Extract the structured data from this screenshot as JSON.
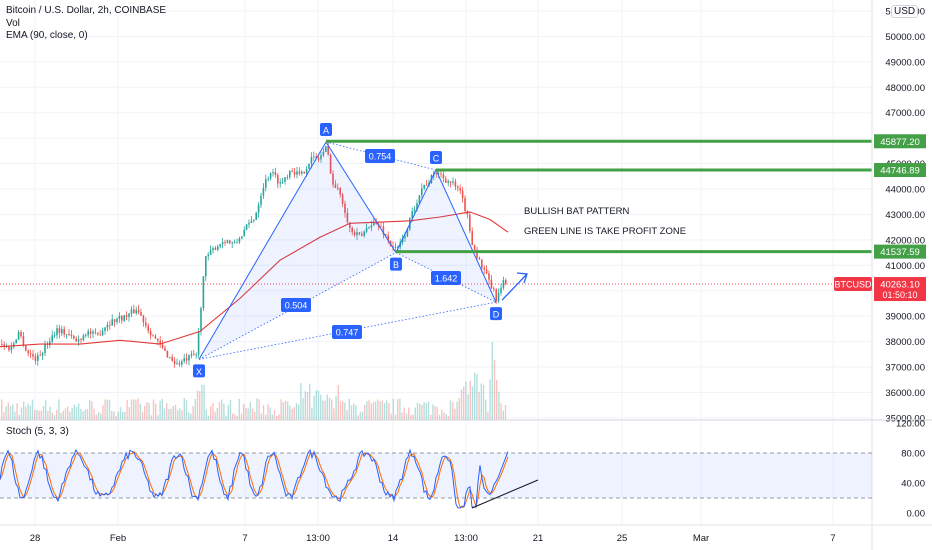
{
  "legend": {
    "title": "Bitcoin / U.S. Dollar, 2h, COINBASE",
    "volume": "Vol",
    "ema": "EMA (90, close, 0)"
  },
  "stoch_legend": "Stoch (5, 3, 3)",
  "unit_badge": "USD",
  "colors": {
    "up": "#26a69a",
    "down": "#ef5350",
    "ema": "#e53935",
    "pattern": "#2962ff",
    "profit_line": "#43a047",
    "stoch_k": "#2962ff",
    "stoch_d": "#ff6d00",
    "price_line": "#f23645"
  },
  "chart_data": [
    {
      "type": "candlestick",
      "symbol": "BTCUSD",
      "interval": "2h",
      "x_axis": {
        "tick_labels": [
          "28",
          "Feb",
          "7",
          "13:00",
          "14",
          "13:00",
          "21",
          "25",
          "Mar",
          "7"
        ]
      },
      "y_axis": {
        "ylim": [
          35000,
          51000
        ],
        "tick_labels": [
          "51000.00",
          "50000.00",
          "49000.00",
          "48000.00",
          "47000.00",
          "46000.00",
          "45000.00",
          "44000.00",
          "43000.00",
          "42000.00",
          "41000.00",
          "40000.00",
          "39000.00",
          "38000.00",
          "37000.00",
          "36000.00",
          "35000.00"
        ]
      },
      "price_path": [
        [
          0,
          37900
        ],
        [
          10,
          37700
        ],
        [
          18,
          38400
        ],
        [
          26,
          37600
        ],
        [
          36,
          37300
        ],
        [
          46,
          37900
        ],
        [
          56,
          38500
        ],
        [
          66,
          38300
        ],
        [
          76,
          38000
        ],
        [
          86,
          38400
        ],
        [
          96,
          38200
        ],
        [
          106,
          38700
        ],
        [
          116,
          38900
        ],
        [
          126,
          39000
        ],
        [
          136,
          39300
        ],
        [
          146,
          38600
        ],
        [
          156,
          38000
        ],
        [
          166,
          37500
        ],
        [
          176,
          37100
        ],
        [
          186,
          37300
        ],
        [
          196,
          37500
        ],
        [
          204,
          41200
        ],
        [
          214,
          41700
        ],
        [
          224,
          42000
        ],
        [
          234,
          41800
        ],
        [
          244,
          42400
        ],
        [
          254,
          42900
        ],
        [
          262,
          44100
        ],
        [
          270,
          44700
        ],
        [
          280,
          44200
        ],
        [
          290,
          44800
        ],
        [
          300,
          44500
        ],
        [
          310,
          45200
        ],
        [
          318,
          45200
        ],
        [
          326,
          45650
        ],
        [
          332,
          44200
        ],
        [
          340,
          43800
        ],
        [
          350,
          42300
        ],
        [
          360,
          42100
        ],
        [
          370,
          42700
        ],
        [
          380,
          42500
        ],
        [
          390,
          41800
        ],
        [
          396,
          41580
        ],
        [
          404,
          42200
        ],
        [
          412,
          43100
        ],
        [
          420,
          44000
        ],
        [
          428,
          44300
        ],
        [
          436,
          44700
        ],
        [
          444,
          44400
        ],
        [
          452,
          44200
        ],
        [
          460,
          43800
        ],
        [
          466,
          43000
        ],
        [
          472,
          41800
        ],
        [
          480,
          41000
        ],
        [
          488,
          40400
        ],
        [
          496,
          39650
        ],
        [
          502,
          40300
        ],
        [
          508,
          40250
        ]
      ],
      "ema_path": [
        [
          0,
          37800
        ],
        [
          40,
          37900
        ],
        [
          80,
          37900
        ],
        [
          120,
          38050
        ],
        [
          160,
          37900
        ],
        [
          200,
          38400
        ],
        [
          240,
          39700
        ],
        [
          280,
          41200
        ],
        [
          320,
          42100
        ],
        [
          350,
          42650
        ],
        [
          380,
          42700
        ],
        [
          410,
          42750
        ],
        [
          440,
          42900
        ],
        [
          470,
          43100
        ],
        [
          490,
          42800
        ],
        [
          508,
          42300
        ]
      ],
      "pattern_points": [
        {
          "label": "X",
          "price": 37300
        },
        {
          "label": "A",
          "price": 45850
        },
        {
          "label": "B",
          "price": 41500
        },
        {
          "label": "C",
          "price": 44750
        },
        {
          "label": "D",
          "price": 39550
        }
      ],
      "ratios": [
        "0.754",
        "0.504",
        "1.642",
        "0.747"
      ],
      "horizontal_levels": [
        {
          "label": "45877.20",
          "price": 45877.2
        },
        {
          "label": "44746.89",
          "price": 44746.89
        },
        {
          "label": "41537.59",
          "price": 41537.59
        }
      ],
      "current_price": {
        "symbol": "BTCUSD",
        "price": 40263.1,
        "label": "40263.10",
        "countdown": "01:50:10"
      },
      "annotations": [
        "BULLISH BAT PATTERN",
        "GREEN LINE IS TAKE PROFIT ZONE"
      ]
    },
    {
      "type": "line",
      "name": "Stoch (5, 3, 3)",
      "ylim": [
        0,
        120
      ],
      "tick_labels": [
        "120.00",
        "80.00",
        "40.00",
        "0.00"
      ],
      "bands": [
        20,
        80
      ]
    }
  ]
}
